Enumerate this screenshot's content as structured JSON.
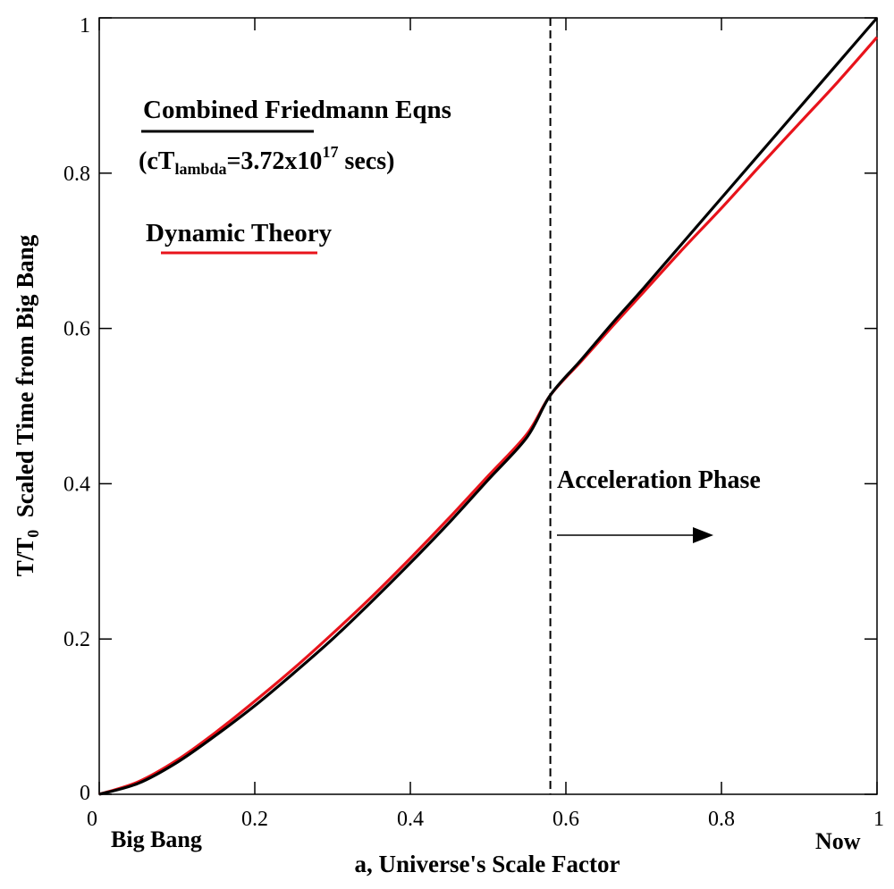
{
  "chart_data": {
    "type": "line",
    "xlabel": "a, Universe's Scale Factor",
    "ylabel": {
      "prefix": "T/T",
      "sub": "0",
      "suffix": "  Scaled Time from Big Bang"
    },
    "xlim": [
      0,
      1
    ],
    "ylim": [
      0,
      1
    ],
    "x_ticks": [
      0,
      0.2,
      0.4,
      0.6,
      0.8,
      1
    ],
    "x_tick_labels": [
      "0",
      "0.2",
      "0.4",
      "0.6",
      "0.8",
      "1"
    ],
    "y_ticks": [
      0,
      0.2,
      0.4,
      0.6,
      0.8,
      1
    ],
    "y_tick_labels": [
      "0",
      "0.2",
      "0.4",
      "0.6",
      "0.8",
      "1"
    ],
    "grid": false,
    "series": [
      {
        "name": "Combined Friedmann Eqns",
        "color": "#000000",
        "x": [
          0,
          0.05,
          0.1,
          0.15,
          0.2,
          0.25,
          0.3,
          0.35,
          0.4,
          0.45,
          0.5,
          0.55,
          0.58,
          0.62,
          0.66,
          0.7,
          0.75,
          0.8,
          0.85,
          0.9,
          0.95,
          1.0
        ],
        "y": [
          0,
          0.014,
          0.041,
          0.076,
          0.114,
          0.156,
          0.2,
          0.248,
          0.298,
          0.35,
          0.405,
          0.46,
          0.514,
          0.56,
          0.607,
          0.652,
          0.71,
          0.768,
          0.826,
          0.884,
          0.942,
          1.0
        ]
      },
      {
        "name": "Dynamic Theory",
        "color": "#e8131b",
        "x": [
          0,
          0.05,
          0.1,
          0.15,
          0.2,
          0.25,
          0.3,
          0.35,
          0.4,
          0.45,
          0.5,
          0.55,
          0.58,
          0.62,
          0.66,
          0.7,
          0.75,
          0.8,
          0.85,
          0.9,
          0.95,
          1.0
        ],
        "y": [
          0,
          0.016,
          0.044,
          0.08,
          0.12,
          0.162,
          0.207,
          0.254,
          0.304,
          0.356,
          0.41,
          0.464,
          0.514,
          0.558,
          0.603,
          0.647,
          0.702,
          0.755,
          0.81,
          0.864,
          0.918,
          0.975
        ]
      }
    ],
    "vertical_line": {
      "x": 0.58,
      "style": "dashed",
      "color": "#000000"
    },
    "legend": {
      "friedmann_label": "Combined Friedmann Eqns",
      "friedmann_note_prefix": "(cT",
      "friedmann_note_sub": "lambda",
      "friedmann_note_mid": "=3.72x10",
      "friedmann_note_sup": "17",
      "friedmann_note_suffix": " secs)",
      "dynamic_label": "Dynamic Theory"
    },
    "annotations": {
      "acceleration": "Acceleration Phase",
      "big_bang": "Big Bang",
      "now": "Now"
    }
  }
}
